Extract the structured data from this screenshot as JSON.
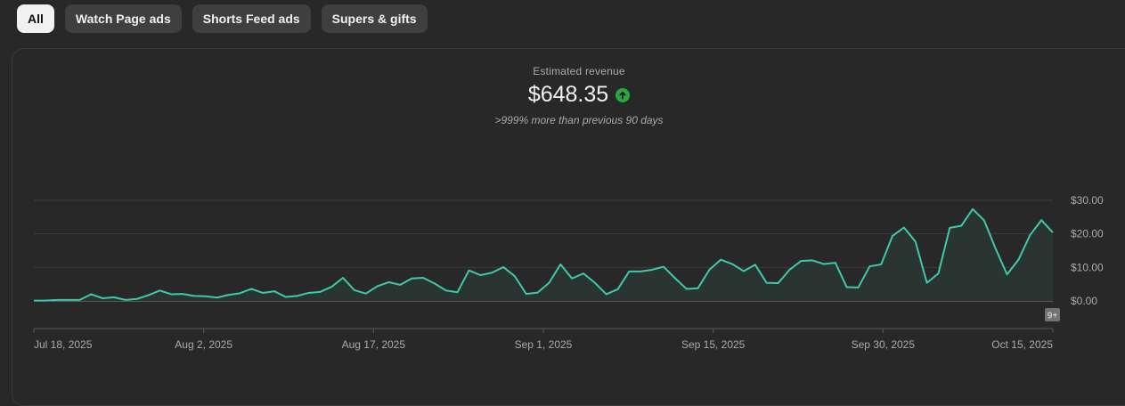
{
  "filters": {
    "items": [
      {
        "label": "All",
        "active": true
      },
      {
        "label": "Watch Page ads",
        "active": false
      },
      {
        "label": "Shorts Feed ads",
        "active": false
      },
      {
        "label": "Supers & gifts",
        "active": false
      }
    ]
  },
  "metric": {
    "label": "Estimated revenue",
    "value": "$648.35",
    "trend_icon": "arrow-up-circle-icon",
    "comparison": ">999% more than previous 90 days"
  },
  "colors": {
    "line": "#3ec9ad",
    "area": "#2a3532",
    "positive": "#2ba640",
    "grid": "#3d3d3d",
    "axis_text": "#aaaaaa"
  },
  "badge": "9+",
  "chart_data": {
    "type": "area",
    "ylim": [
      0,
      30
    ],
    "y_ticks": [
      {
        "value": 0,
        "label": "$0.00"
      },
      {
        "value": 10,
        "label": "$10.00"
      },
      {
        "value": 20,
        "label": "$20.00"
      },
      {
        "value": 30,
        "label": "$30.00"
      }
    ],
    "x_ticks": [
      "Jul 18, 2025",
      "Aug 2, 2025",
      "Aug 17, 2025",
      "Sep 1, 2025",
      "Sep 15, 2025",
      "Sep 30, 2025",
      "Oct 15, 2025"
    ],
    "values": [
      0.1,
      0.1,
      0.3,
      0.3,
      0.3,
      2,
      0.8,
      1.1,
      0.3,
      0.6,
      1.7,
      3.1,
      2,
      2.1,
      1.5,
      1.4,
      1,
      1.8,
      2.3,
      3.6,
      2.4,
      2.9,
      1.2,
      1.5,
      2.4,
      2.7,
      4.2,
      6.9,
      3.2,
      2.2,
      4.4,
      5.6,
      4.8,
      6.7,
      6.9,
      5.2,
      3.1,
      2.6,
      9.1,
      7.7,
      8.4,
      10.1,
      7.4,
      2.1,
      2.5,
      5.4,
      10.9,
      6.7,
      8.2,
      5.4,
      2,
      3.5,
      8.8,
      8.8,
      9.3,
      10.2,
      6.8,
      3.6,
      3.8,
      9.3,
      12.3,
      11,
      8.9,
      10.8,
      5.4,
      5.3,
      9.3,
      11.9,
      12.1,
      11,
      11.4,
      4.1,
      4,
      10.3,
      10.9,
      19.4,
      21.9,
      17.7,
      5.4,
      8.2,
      21.8,
      22.4,
      27.4,
      24,
      15.6,
      7.9,
      12.3,
      19.6,
      24.1,
      20.4
    ]
  }
}
